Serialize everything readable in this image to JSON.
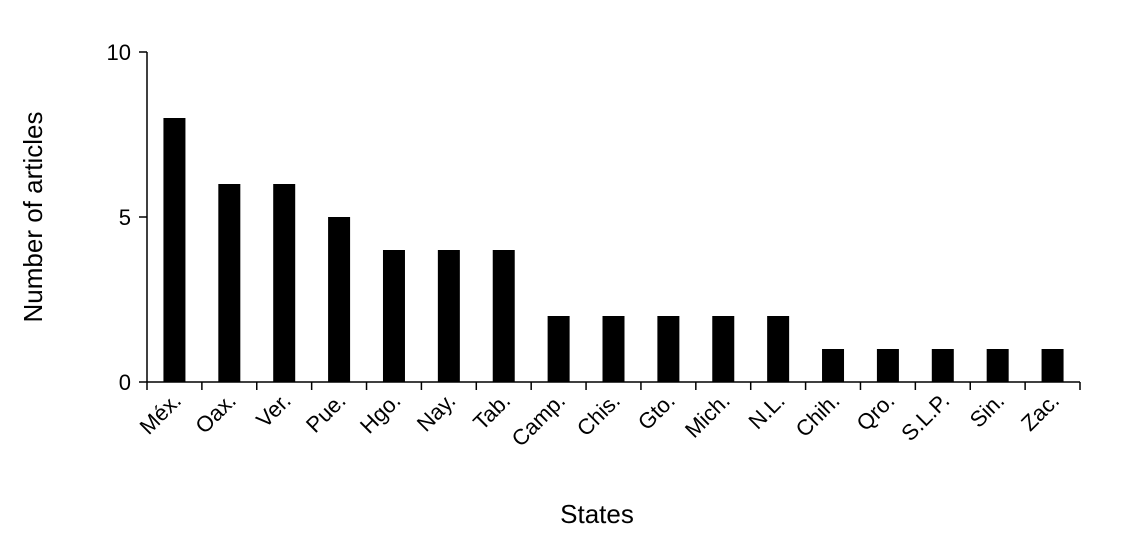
{
  "chart_data": {
    "type": "bar",
    "x_label": "States",
    "y_label": "Number of articles",
    "categories": [
      "Méx.",
      "Oax.",
      "Ver.",
      "Pue.",
      "Hgo.",
      "Nay.",
      "Tab.",
      "Camp.",
      "Chis.",
      "Gto.",
      "Mich.",
      "N.L.",
      "Chih.",
      "Qro.",
      "S.L.P.",
      "Sin.",
      "Zac."
    ],
    "values": [
      8,
      6,
      6,
      5,
      4,
      4,
      4,
      2,
      2,
      2,
      2,
      2,
      1,
      1,
      1,
      1,
      1
    ],
    "color": "#000000",
    "ylim": [
      0,
      10
    ],
    "yticks": [
      0,
      5,
      10
    ],
    "grid": false
  }
}
